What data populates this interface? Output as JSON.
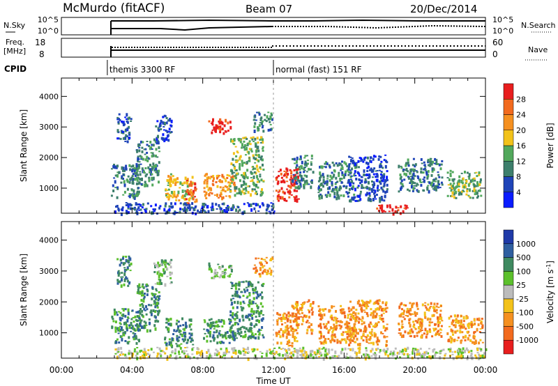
{
  "header": {
    "station": "McMurdo (fitACF)",
    "beam": "Beam 07",
    "date": "20/Dec/2014"
  },
  "noise_panel": {
    "left_label": "N.Sky",
    "right_label": "N.Search",
    "left_ticks": [
      "10^5",
      "10^0"
    ],
    "right_ticks": [
      "10^5",
      "10^0"
    ]
  },
  "freq_panel": {
    "left_label_line1": "Freq.",
    "left_label_line2": "[MHz]",
    "left_ticks": [
      "18",
      "8"
    ],
    "right_ticks": [
      "60",
      "0"
    ],
    "right_label": "Nave"
  },
  "cpid": {
    "label": "CPID",
    "modes": [
      {
        "start_hour": 2.6,
        "text": "themis 3300 RF"
      },
      {
        "start_hour": 12.0,
        "text": "normal (fast) 151 RF"
      }
    ]
  },
  "chart_data": [
    {
      "type": "heatmap",
      "title": "",
      "ylabel": "Slant Range [km]",
      "xlabel": "Time UT",
      "xlim_hours": [
        0,
        24
      ],
      "ylim": [
        180,
        4600
      ],
      "ytick_labels": [
        "1000",
        "2000",
        "3000",
        "4000"
      ],
      "ytick_values": [
        1000,
        2000,
        3000,
        4000
      ],
      "colorbar": {
        "label": "Power [dB]",
        "tick_labels": [
          "4",
          "8",
          "12",
          "16",
          "20",
          "24",
          "28"
        ],
        "colors": [
          "#0a1cff",
          "#1f44b8",
          "#3d7f6c",
          "#52a85c",
          "#f2c21a",
          "#f59020",
          "#f26a1e",
          "#e81e1e"
        ]
      },
      "echo_regions": [
        {
          "t0": 2.8,
          "t1": 4.4,
          "r0": 700,
          "r1": 1800,
          "level": 2
        },
        {
          "t0": 3.1,
          "t1": 3.9,
          "r0": 2500,
          "r1": 3500,
          "level": 1
        },
        {
          "t0": 4.2,
          "t1": 5.5,
          "r0": 1100,
          "r1": 2600,
          "level": 2
        },
        {
          "t0": 5.2,
          "t1": 6.2,
          "r0": 2600,
          "r1": 3400,
          "level": 1
        },
        {
          "t0": 5.8,
          "t1": 7.4,
          "r0": 600,
          "r1": 1500,
          "level": 4
        },
        {
          "t0": 7.0,
          "t1": 7.6,
          "r0": 500,
          "r1": 1300,
          "level": 6
        },
        {
          "t0": 8.3,
          "t1": 9.6,
          "r0": 2800,
          "r1": 3300,
          "level": 7
        },
        {
          "t0": 8.0,
          "t1": 9.8,
          "r0": 700,
          "r1": 1500,
          "level": 5
        },
        {
          "t0": 9.5,
          "t1": 11.4,
          "r0": 800,
          "r1": 2700,
          "level": 3
        },
        {
          "t0": 10.8,
          "t1": 11.9,
          "r0": 2900,
          "r1": 3500,
          "level": 2
        },
        {
          "t0": 12.1,
          "t1": 13.4,
          "r0": 600,
          "r1": 1700,
          "level": 7
        },
        {
          "t0": 13.0,
          "t1": 14.2,
          "r0": 1000,
          "r1": 2100,
          "level": 2
        },
        {
          "t0": 14.5,
          "t1": 16.6,
          "r0": 700,
          "r1": 1900,
          "level": 2
        },
        {
          "t0": 16.2,
          "t1": 18.4,
          "r0": 600,
          "r1": 2100,
          "level": 1
        },
        {
          "t0": 17.8,
          "t1": 19.6,
          "r0": 200,
          "r1": 480,
          "level": 7
        },
        {
          "t0": 19.0,
          "t1": 21.5,
          "r0": 900,
          "r1": 2000,
          "level": 2
        },
        {
          "t0": 21.8,
          "t1": 23.8,
          "r0": 700,
          "r1": 1600,
          "level": 3
        },
        {
          "t0": 3.0,
          "t1": 12.0,
          "r0": 200,
          "r1": 550,
          "level": 1
        }
      ]
    },
    {
      "type": "heatmap",
      "title": "",
      "ylabel": "Slant Range [km]",
      "xlabel": "Time UT",
      "xlim_hours": [
        0,
        24
      ],
      "ylim": [
        180,
        4600
      ],
      "ytick_labels": [
        "1000",
        "2000",
        "3000",
        "4000"
      ],
      "ytick_values": [
        1000,
        2000,
        3000,
        4000
      ],
      "colorbar": {
        "label": "Velocity [m s",
        "label_sup": "-1",
        "label_end": "]",
        "tick_labels": [
          "1000",
          "500",
          "100",
          "25",
          "-25",
          "-100",
          "-500",
          "-1000"
        ],
        "colors": [
          "#1f3aa8",
          "#2f5fa0",
          "#3f8a60",
          "#5cc02c",
          "#bcbcbc",
          "#f3c21a",
          "#f59020",
          "#f26a1e",
          "#e81e1e"
        ]
      },
      "echo_regions": [
        {
          "t0": 2.8,
          "t1": 4.4,
          "r0": 700,
          "r1": 1800,
          "level": 2
        },
        {
          "t0": 3.1,
          "t1": 3.9,
          "r0": 2500,
          "r1": 3500,
          "level": 2
        },
        {
          "t0": 4.2,
          "t1": 5.5,
          "r0": 1100,
          "r1": 2600,
          "level": 2
        },
        {
          "t0": 5.2,
          "t1": 6.2,
          "r0": 2600,
          "r1": 3400,
          "level": 3
        },
        {
          "t0": 5.8,
          "t1": 7.4,
          "r0": 600,
          "r1": 1500,
          "level": 2
        },
        {
          "t0": 8.0,
          "t1": 9.8,
          "r0": 700,
          "r1": 1500,
          "level": 2
        },
        {
          "t0": 8.3,
          "t1": 9.6,
          "r0": 2800,
          "r1": 3300,
          "level": 3
        },
        {
          "t0": 9.5,
          "t1": 11.4,
          "r0": 800,
          "r1": 2700,
          "level": 2
        },
        {
          "t0": 10.8,
          "t1": 11.9,
          "r0": 2900,
          "r1": 3500,
          "level": 6
        },
        {
          "t0": 12.1,
          "t1": 13.4,
          "r0": 600,
          "r1": 1700,
          "level": 6
        },
        {
          "t0": 13.0,
          "t1": 14.2,
          "r0": 1000,
          "r1": 2100,
          "level": 6
        },
        {
          "t0": 14.5,
          "t1": 16.6,
          "r0": 700,
          "r1": 1900,
          "level": 6
        },
        {
          "t0": 16.2,
          "t1": 18.4,
          "r0": 600,
          "r1": 2100,
          "level": 6
        },
        {
          "t0": 19.0,
          "t1": 21.5,
          "r0": 900,
          "r1": 2000,
          "level": 6
        },
        {
          "t0": 21.8,
          "t1": 23.8,
          "r0": 700,
          "r1": 1600,
          "level": 6
        },
        {
          "t0": 3.0,
          "t1": 24.0,
          "r0": 200,
          "r1": 550,
          "level": 4
        }
      ]
    }
  ],
  "time_axis": {
    "tick_labels": [
      "00:00",
      "04:00",
      "08:00",
      "12:00",
      "16:00",
      "20:00",
      "00:00"
    ],
    "tick_hours": [
      0,
      4,
      8,
      12,
      16,
      20,
      24
    ],
    "label": "Time UT"
  }
}
